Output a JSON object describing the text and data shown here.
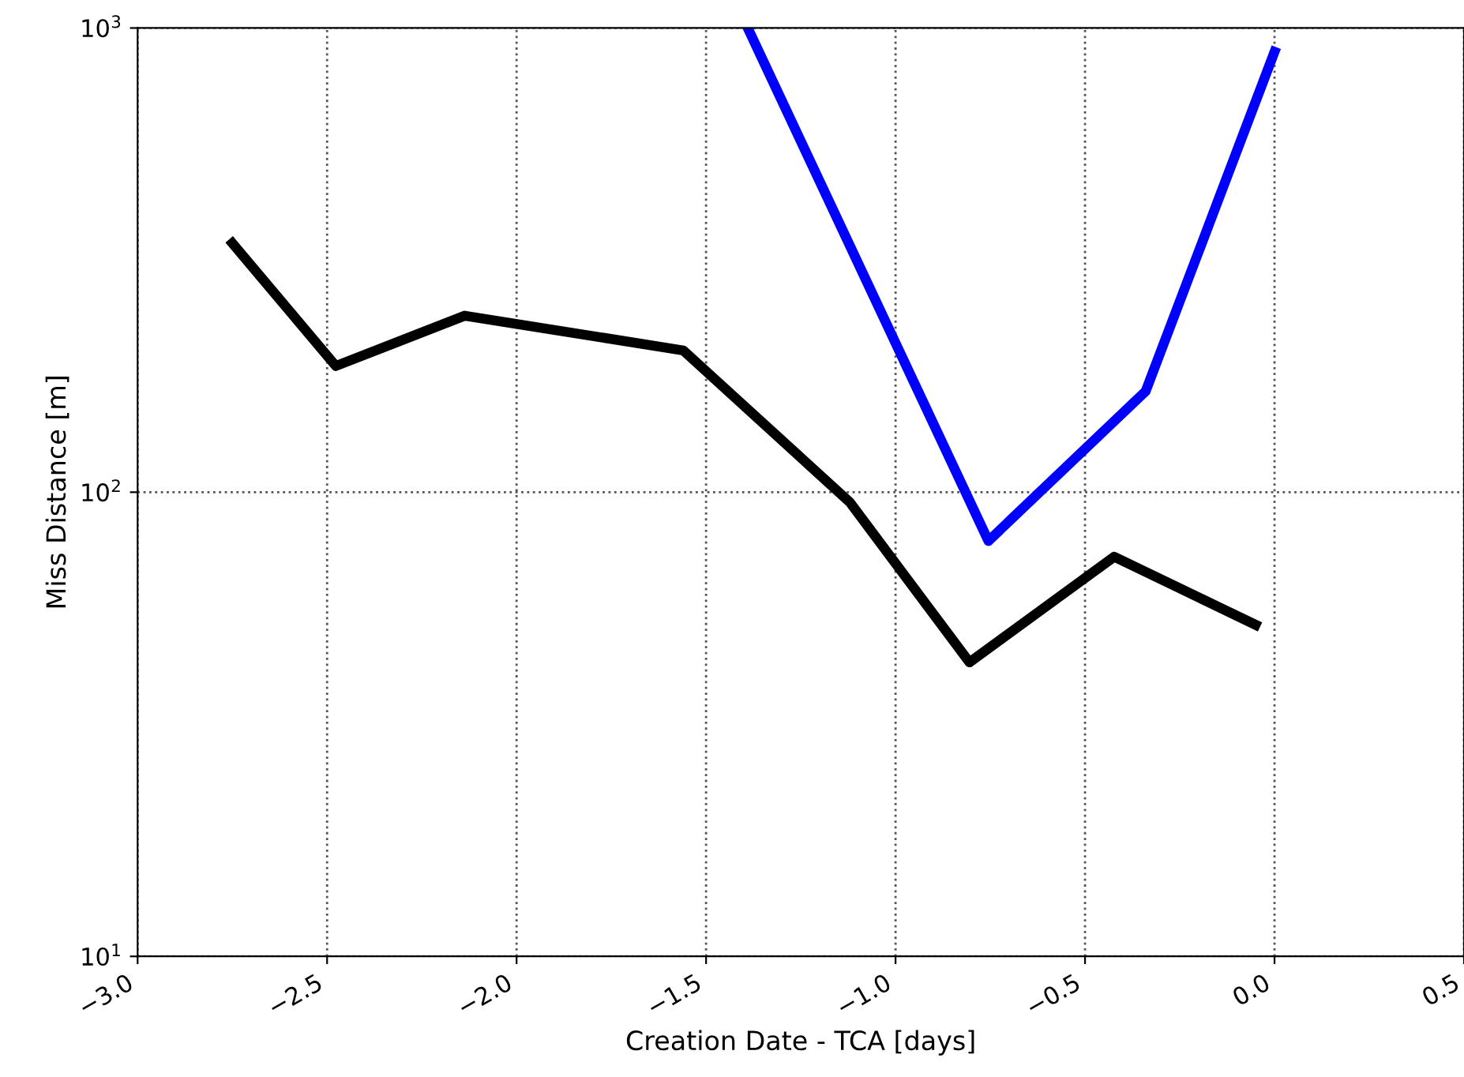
{
  "chart_data": {
    "type": "line",
    "xlabel": "Creation Date - TCA [days]",
    "ylabel": "Miss Distance [m]",
    "series": [
      {
        "color": "#000000",
        "x": [
          -2.75,
          -2.477,
          -2.137,
          -1.56,
          -1.12,
          -0.805,
          -0.423,
          -0.05
        ],
        "values": [
          344,
          187,
          240,
          202,
          95,
          43,
          72.6,
          51.8
        ]
      },
      {
        "color": "#0000ff",
        "x": [
          -1.39,
          -0.755,
          -0.34,
          0.0
        ],
        "values": [
          1000,
          78.5,
          165,
          889
        ]
      }
    ],
    "log": "y",
    "xlim": [
      -3,
      0.5
    ],
    "ylim": [
      10,
      1000
    ],
    "xticks": [
      {
        "value": -3,
        "label": "−3.0"
      },
      {
        "value": -2.5,
        "label": "−2.5"
      },
      {
        "value": -2,
        "label": "−2.0"
      },
      {
        "value": -1.5,
        "label": "−1.5"
      },
      {
        "value": -1,
        "label": "−1.0"
      },
      {
        "value": -0.5,
        "label": "−0.5"
      },
      {
        "value": 0,
        "label": "0.0"
      },
      {
        "value": 0.5,
        "label": "0.5"
      }
    ],
    "yticks": [
      {
        "value": 10,
        "label": "10$^{1}$"
      },
      {
        "value": 100,
        "label": "10$^{2}$"
      },
      {
        "value": 1000,
        "label": "10$^{3}$"
      }
    ],
    "grid": true,
    "line_style": "solid",
    "marker": "none"
  }
}
